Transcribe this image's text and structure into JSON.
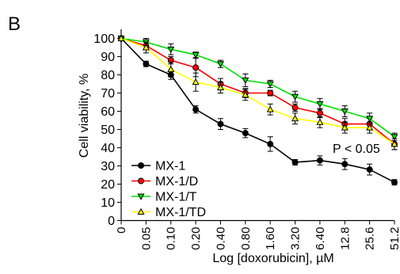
{
  "chart_data": {
    "type": "line",
    "panel_label": "B",
    "xlabel": "Log [doxorubicin], µM",
    "ylabel": "Cell viability, %",
    "categories": [
      "0",
      "0.05",
      "0.10",
      "0.20",
      "0.40",
      "0.80",
      "1.60",
      "3.20",
      "6.40",
      "12.8",
      "25.6",
      "51.2"
    ],
    "ylim": [
      0,
      105
    ],
    "yticks": [
      0,
      10,
      20,
      30,
      40,
      50,
      60,
      70,
      80,
      90,
      100
    ],
    "annotation": "P < 0.05",
    "legend_position": "bottom-left",
    "grid": false,
    "series": [
      {
        "name": "MX-1",
        "color": "#000000",
        "marker": "circle",
        "values": [
          100,
          86,
          80,
          61,
          53,
          48,
          42,
          32,
          33,
          31,
          28,
          21
        ],
        "errors": [
          0,
          1.5,
          2.5,
          2,
          3,
          2.5,
          4,
          1.5,
          2.5,
          3,
          3,
          1.5
        ]
      },
      {
        "name": "MX-1/D",
        "color": "#ff0000",
        "marker": "circle",
        "values": [
          100,
          96,
          88,
          84,
          75,
          70,
          70,
          62,
          59,
          53,
          53,
          42
        ],
        "errors": [
          0,
          2,
          2,
          5,
          3,
          2.5,
          1.5,
          2,
          2.5,
          3,
          3,
          3
        ]
      },
      {
        "name": "MX-1/T",
        "color": "#00e000",
        "marker": "triangle-down",
        "values": [
          100,
          98,
          94,
          91,
          86,
          77,
          75,
          68,
          64,
          60,
          56,
          46
        ],
        "errors": [
          0,
          2,
          3,
          1.5,
          2,
          3.5,
          2,
          3,
          3,
          3,
          3,
          2
        ]
      },
      {
        "name": "MX-1/TD",
        "color": "#ffff00",
        "marker": "triangle-up",
        "values": [
          100,
          95,
          83,
          76,
          73,
          69,
          61,
          56,
          54,
          51,
          51,
          42
        ],
        "errors": [
          0,
          3,
          4,
          5,
          3,
          3,
          3,
          3,
          3,
          3,
          3,
          3
        ]
      }
    ]
  }
}
